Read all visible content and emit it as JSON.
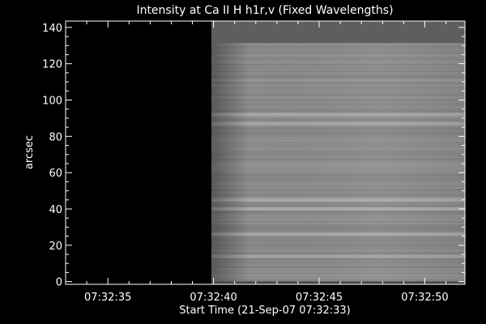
{
  "chart_data": {
    "type": "heatmap",
    "title": "Intensity at Ca II H h1r,v (Fixed Wavelengths)",
    "xlabel": "Start Time (21-Sep-07 07:32:33)",
    "ylabel": "arcsec",
    "x_ticks": [
      "07:32:35",
      "07:32:40",
      "07:32:45",
      "07:32:50"
    ],
    "x_tick_seconds": [
      35,
      40,
      45,
      50
    ],
    "xlim": [
      33.0,
      51.9
    ],
    "ylim": [
      -1.5,
      143.5
    ],
    "y_ticks": [
      0,
      20,
      40,
      60,
      80,
      100,
      120,
      140
    ],
    "data_start_seconds": 39.9,
    "data_top_arcsec": 131.5,
    "colormap": "grayscale",
    "background_level": "black",
    "colors": {
      "axes": "#ffffff",
      "background": "#000000",
      "no_data_band": "#5e5e5e",
      "data_base": "#8a8a8a"
    },
    "bright_bands_arcsec": [
      92,
      87,
      45,
      40,
      26,
      14
    ]
  }
}
